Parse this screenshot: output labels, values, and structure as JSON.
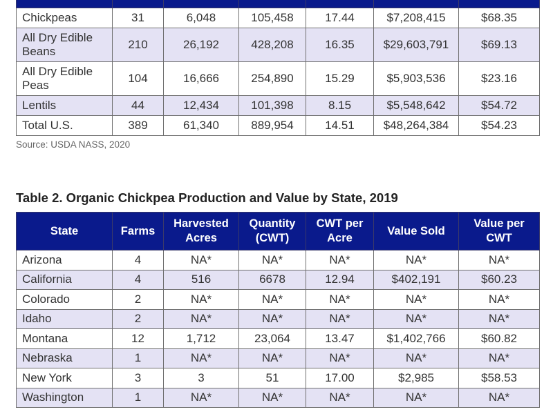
{
  "table1": {
    "rows": [
      [
        "Chickpeas",
        "31",
        "6,048",
        "105,458",
        "17.44",
        "$7,208,415",
        "$68.35"
      ],
      [
        "All Dry Edible Beans",
        "210",
        "26,192",
        "428,208",
        "16.35",
        "$29,603,791",
        "$69.13"
      ],
      [
        "All Dry Edible Peas",
        "104",
        "16,666",
        "254,890",
        "15.29",
        "$5,903,536",
        "$23.16"
      ],
      [
        "Lentils",
        "44",
        "12,434",
        "101,398",
        "8.15",
        "$5,548,642",
        "$54.72"
      ],
      [
        "Total U.S.",
        "389",
        "61,340",
        "889,954",
        "14.51",
        "$48,264,384",
        "$54.23"
      ]
    ],
    "source": "Source: USDA NASS, 2020"
  },
  "table2": {
    "title": "Table 2. Organic Chickpea Production and Value by State, 2019",
    "headers": [
      "State",
      "Farms",
      "Harvested Acres",
      "Quantity (CWT)",
      "CWT per Acre",
      "Value Sold",
      "Value per CWT"
    ],
    "rows": [
      [
        "Arizona",
        "4",
        "NA*",
        "NA*",
        "NA*",
        "NA*",
        "NA*"
      ],
      [
        "California",
        "4",
        "516",
        "6678",
        "12.94",
        "$402,191",
        "$60.23"
      ],
      [
        "Colorado",
        "2",
        "NA*",
        "NA*",
        "NA*",
        "NA*",
        "NA*"
      ],
      [
        "Idaho",
        "2",
        "NA*",
        "NA*",
        "NA*",
        "NA*",
        "NA*"
      ],
      [
        "Montana",
        "12",
        "1,712",
        "23,064",
        "13.47",
        "$1,402,766",
        "$60.82"
      ],
      [
        "Nebraska",
        "1",
        "NA*",
        "NA*",
        "NA*",
        "NA*",
        "NA*"
      ],
      [
        "New York",
        "3",
        "3",
        "51",
        "17.00",
        "$2,985",
        "$58.53"
      ],
      [
        "Washington",
        "1",
        "NA*",
        "NA*",
        "NA*",
        "NA*",
        "NA*"
      ]
    ]
  },
  "colors": {
    "header_bg": "#0a1a8c",
    "alt_row_bg": "#e4e2f4"
  }
}
